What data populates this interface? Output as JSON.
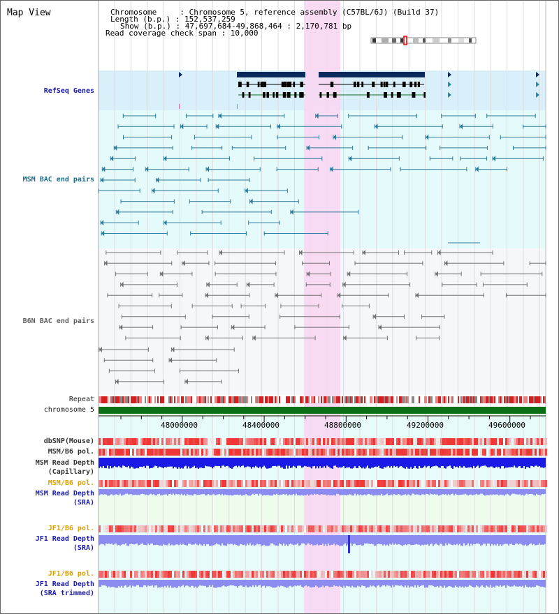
{
  "page": {
    "title": "Map View"
  },
  "header": {
    "chromosome": "Chromosome     : Chromosome 5, reference assembly (C57BL/6J) (Build 37)",
    "length": "Length (b.p.) : 152,537,259",
    "show": "Show (b.p.) : 47,697,684-49,868,464 : 2,170,781 bp",
    "coverage": "Read coverage check span : 10,000"
  },
  "tracks": {
    "refseq": "RefSeq Genes",
    "msm_bac": "MSM BAC end pairs",
    "b6n_bac": "B6N BAC end pairs",
    "repeat": "Repeat",
    "chrom": "chromosome 5",
    "dbsnp": "dbSNP(Mouse)",
    "msm_pol1": "MSM/B6 pol.",
    "msm_depth_cap_1": "MSM Read Depth",
    "msm_depth_cap_2": "(Capillary)",
    "msm_pol2": "MSM/B6 pol.",
    "msm_depth_sra_1": "MSM Read Depth",
    "msm_depth_sra_2": "(SRA)",
    "jf1_pol1": "JF1/B6 pol.",
    "jf1_depth_1": "JF1 Read Depth",
    "jf1_depth_2": "(SRA)",
    "jf1_pol2": "JF1/B6 pol.",
    "jf1_trim_1": "JF1 Read Depth",
    "jf1_trim_2": "(SRA trimmed)"
  },
  "axis": {
    "ticks": [
      "48000000",
      "48400000",
      "48800000",
      "49200000",
      "49600000"
    ]
  },
  "colors": {
    "refseq_bg": "#d9f0fb",
    "bac_bg": "#e5fbfb",
    "b6n_bg": "#f5f7fb",
    "highlight": "#f8d6f2",
    "gene": "#0a2a5e",
    "msm_bac": "#2a7a9c",
    "b6n_bac": "#707070",
    "chromosome": "#0a6e14",
    "depth_dark": "#1a1ae6",
    "depth_light": "#8c8cf0",
    "label_blue": "#1a1aa8",
    "label_orange": "#e0a000",
    "label_teal": "#1c6e8c"
  }
}
